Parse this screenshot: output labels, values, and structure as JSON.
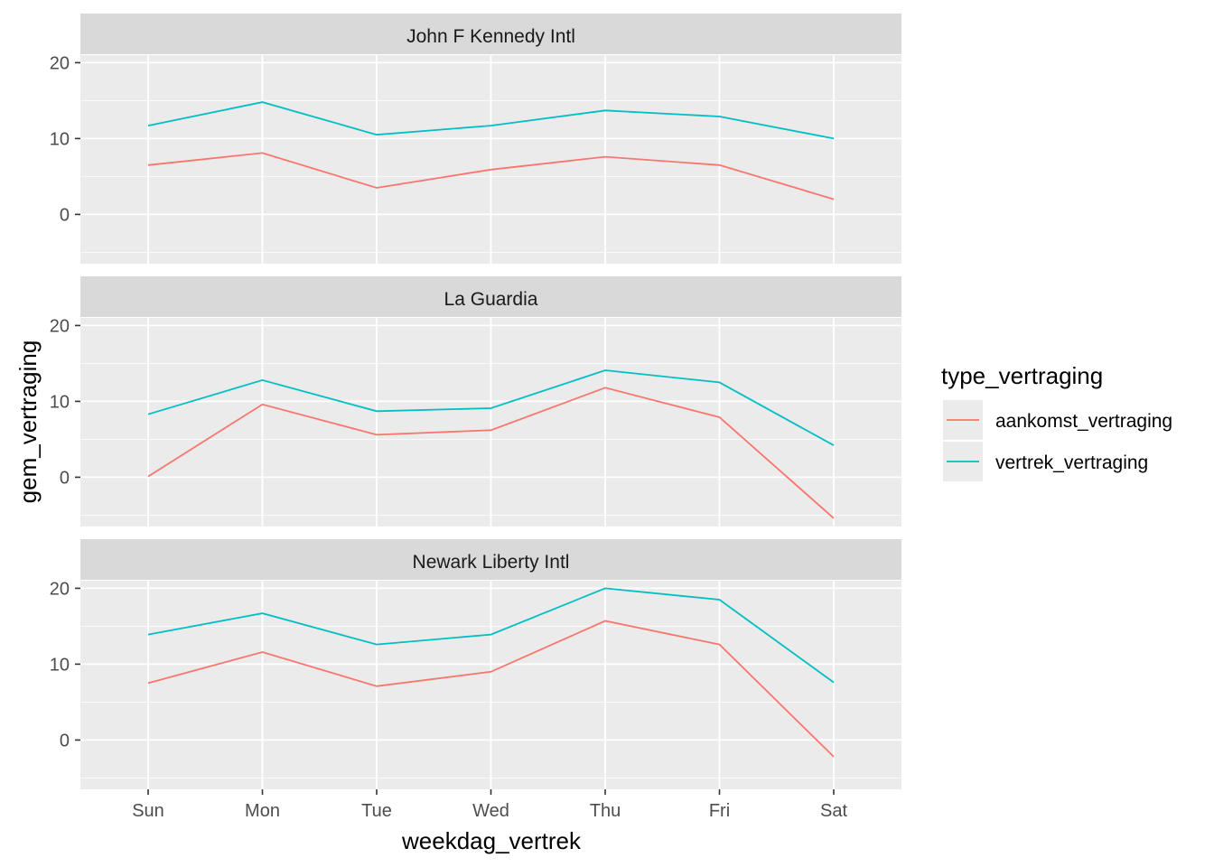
{
  "chart_data": {
    "type": "line",
    "xlabel": "weekdag_vertrek",
    "ylabel": "gem_vertraging",
    "categories": [
      "Sun",
      "Mon",
      "Tue",
      "Wed",
      "Thu",
      "Fri",
      "Sat"
    ],
    "ylim": [
      -6.5,
      21
    ],
    "yticks": [
      0,
      10,
      20
    ],
    "grid": true,
    "legend": {
      "title": "type_vertraging",
      "position": "right",
      "entries": [
        "aankomst_vertraging",
        "vertrek_vertraging"
      ]
    },
    "colors": {
      "aankomst_vertraging": "#F8766D",
      "vertrek_vertraging": "#00BFC4",
      "panel_bg": "#EBEBEB",
      "strip_bg": "#D9D9D9"
    },
    "panels": [
      {
        "facet": "John F Kennedy Intl",
        "series": [
          {
            "name": "aankomst_vertraging",
            "values": [
              6.5,
              8.1,
              3.5,
              5.9,
              7.6,
              6.5,
              2.0
            ]
          },
          {
            "name": "vertrek_vertraging",
            "values": [
              11.7,
              14.8,
              10.5,
              11.7,
              13.7,
              12.9,
              10.0
            ]
          }
        ]
      },
      {
        "facet": "La Guardia",
        "series": [
          {
            "name": "aankomst_vertraging",
            "values": [
              0.1,
              9.6,
              5.6,
              6.2,
              11.8,
              7.9,
              -5.4
            ]
          },
          {
            "name": "vertrek_vertraging",
            "values": [
              8.3,
              12.8,
              8.7,
              9.1,
              14.1,
              12.5,
              4.2
            ]
          }
        ]
      },
      {
        "facet": "Newark Liberty Intl",
        "series": [
          {
            "name": "aankomst_vertraging",
            "values": [
              7.5,
              11.6,
              7.1,
              9.0,
              15.7,
              12.6,
              -2.2
            ]
          },
          {
            "name": "vertrek_vertraging",
            "values": [
              13.9,
              16.7,
              12.6,
              13.9,
              20.0,
              18.5,
              7.6
            ]
          }
        ]
      }
    ]
  }
}
